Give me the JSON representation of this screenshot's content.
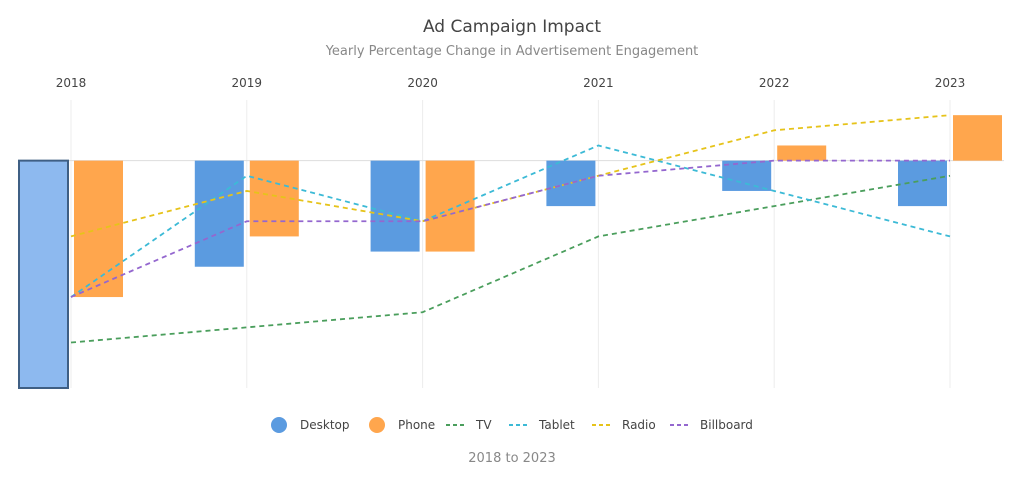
{
  "chart_data": {
    "type": "bar",
    "title": "Ad Campaign Impact",
    "subtitle": "Yearly Percentage Change in Advertisement Engagement",
    "xlabel": "2018 to 2023",
    "ylabel": "",
    "categories": [
      "2018",
      "2019",
      "2020",
      "2021",
      "2022",
      "2023"
    ],
    "ylim": [
      -15,
      4
    ],
    "grid": true,
    "legend_position": "bottom",
    "series": [
      {
        "name": "Desktop",
        "kind": "bar",
        "color": "#5b9be0",
        "values": [
          -15,
          -7,
          -6,
          -3,
          -2,
          -3
        ],
        "highlight_index": 0,
        "highlight_color": "#8db9ef"
      },
      {
        "name": "Phone",
        "kind": "bar",
        "color": "#ffa64d",
        "values": [
          -9,
          -5,
          -6,
          null,
          1,
          3
        ]
      },
      {
        "name": "TV",
        "kind": "line",
        "color": "#4a9e5c",
        "values": [
          -12,
          -11,
          -10,
          -5,
          -3,
          -1
        ]
      },
      {
        "name": "Tablet",
        "kind": "line",
        "color": "#3cbad6",
        "values": [
          -9,
          -1,
          -4,
          1,
          -2,
          -5
        ]
      },
      {
        "name": "Radio",
        "kind": "line",
        "color": "#e6c31a",
        "values": [
          -5,
          -2,
          -4,
          -1,
          2,
          3
        ]
      },
      {
        "name": "Billboard",
        "kind": "line",
        "color": "#9467cf",
        "values": [
          -9,
          -4,
          -4,
          -1,
          0,
          0
        ]
      }
    ]
  }
}
